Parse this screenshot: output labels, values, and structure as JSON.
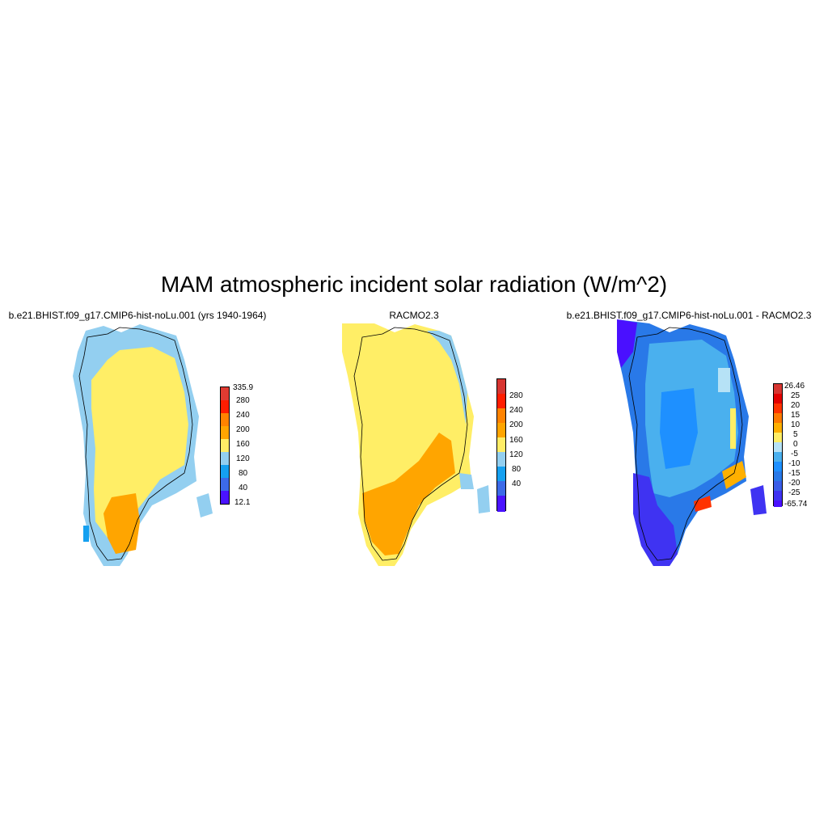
{
  "title": "MAM atmospheric incident solar radiation (W/m^2)",
  "panels": [
    {
      "title": "b.e21.BHIST.f09_g17.CMIP6-hist-noLu.001 (yrs 1940-1964)",
      "colorbar": {
        "labels": [
          "335.9",
          "280",
          "240",
          "200",
          "160",
          "120",
          "80",
          "40",
          "12.1"
        ],
        "colors": [
          "#e03b32",
          "#ff1d00",
          "#ff8300",
          "#ffa500",
          "#ffed66",
          "#93cff0",
          "#15a0f0",
          "#3c6ae8",
          "#4a13ff"
        ]
      }
    },
    {
      "title": "RACMO2.3",
      "colorbar": {
        "labels": [
          "280",
          "240",
          "200",
          "160",
          "120",
          "80",
          "40"
        ],
        "colors": [
          "#d73531",
          "#ff1d00",
          "#ff8300",
          "#ffa500",
          "#ffed66",
          "#93cff0",
          "#15a0f0",
          "#3c6ae8",
          "#4a13ff"
        ]
      }
    },
    {
      "title": "b.e21.BHIST.f09_g17.CMIP6-hist-noLu.001 - RACMO2.3",
      "colorbar": {
        "labels": [
          "26.46",
          "25",
          "20",
          "15",
          "10",
          "5",
          "0",
          "-5",
          "-10",
          "-15",
          "-20",
          "-25",
          "-65.74"
        ],
        "colors": [
          "#d73531",
          "#e30000",
          "#ff3300",
          "#ff7a00",
          "#ffb000",
          "#ffee66",
          "#b6e2f6",
          "#4ab0ee",
          "#1e90ff",
          "#2979e8",
          "#3a5de8",
          "#3f33f2",
          "#4a10ff"
        ]
      }
    }
  ]
}
